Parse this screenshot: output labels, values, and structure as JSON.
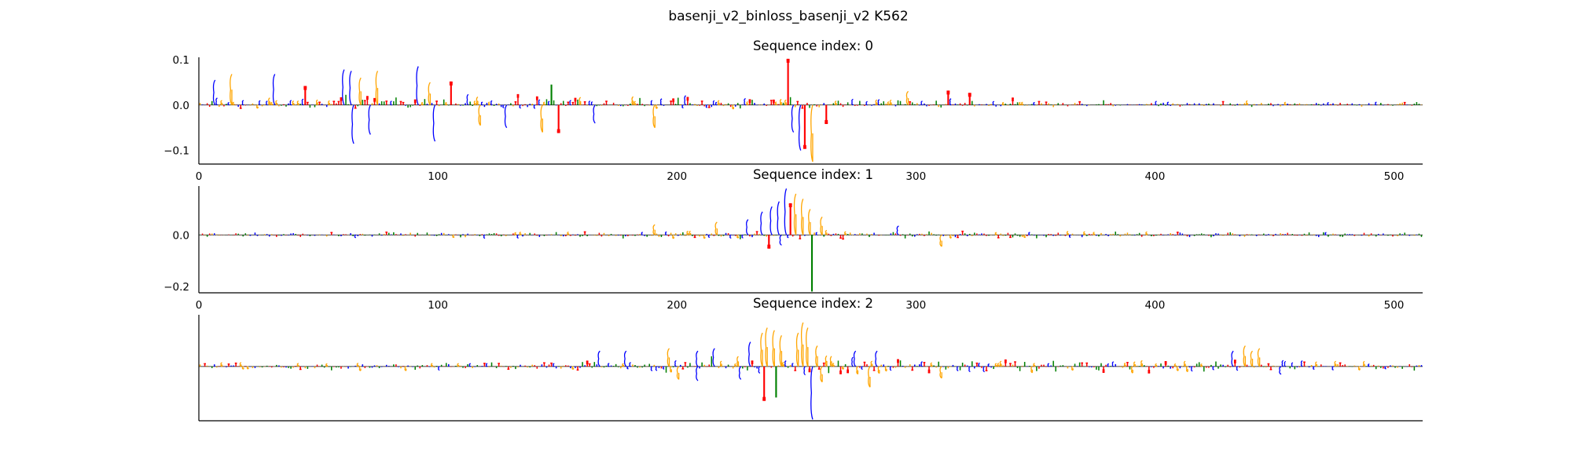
{
  "figure_title": "basenji_v2_binloss_basenji_v2 K562",
  "base_colors": {
    "A": "#008000",
    "C": "#0000ff",
    "G": "#ffa500",
    "T": "#ff0000"
  },
  "chart_data": [
    {
      "type": "sequence-logo",
      "title": "Sequence index: 0",
      "xlim": [
        0,
        512
      ],
      "ylim": [
        -0.13,
        0.105
      ],
      "xticks": [
        0,
        100,
        200,
        300,
        400,
        500
      ],
      "yticks": [
        -0.1,
        0.0,
        0.1
      ],
      "ytick_labels": [
        "−0.1",
        "0.0",
        "0.1"
      ],
      "baseline": 0.05,
      "noise_profile": [
        [
          0,
          0.01
        ],
        [
          140,
          0.013
        ],
        [
          200,
          0.012
        ],
        [
          300,
          0.009
        ],
        [
          380,
          0.006
        ],
        [
          512,
          0.004
        ]
      ],
      "peaks": [
        {
          "x": 6,
          "value": 0.055,
          "base": "C"
        },
        {
          "x": 13,
          "value": 0.068,
          "base": "G"
        },
        {
          "x": 31,
          "value": 0.068,
          "base": "C"
        },
        {
          "x": 44,
          "value": 0.04,
          "base": "T"
        },
        {
          "x": 60,
          "value": 0.078,
          "base": "C"
        },
        {
          "x": 63,
          "value": 0.075,
          "base": "C"
        },
        {
          "x": 67,
          "value": 0.06,
          "base": "G"
        },
        {
          "x": 74,
          "value": 0.075,
          "base": "G"
        },
        {
          "x": 91,
          "value": 0.085,
          "base": "C"
        },
        {
          "x": 96,
          "value": 0.05,
          "base": "G"
        },
        {
          "x": 105,
          "value": 0.05,
          "base": "T"
        },
        {
          "x": 147,
          "value": 0.045,
          "base": "A"
        },
        {
          "x": 246,
          "value": 0.1,
          "base": "T"
        },
        {
          "x": 296,
          "value": 0.03,
          "base": "G"
        },
        {
          "x": 313,
          "value": 0.03,
          "base": "T"
        },
        {
          "x": 322,
          "value": 0.025,
          "base": "T"
        },
        {
          "x": 64,
          "value": -0.085,
          "base": "C"
        },
        {
          "x": 71,
          "value": -0.065,
          "base": "C"
        },
        {
          "x": 98,
          "value": -0.08,
          "base": "C"
        },
        {
          "x": 117,
          "value": -0.045,
          "base": "G"
        },
        {
          "x": 128,
          "value": -0.05,
          "base": "C"
        },
        {
          "x": 143,
          "value": -0.06,
          "base": "G"
        },
        {
          "x": 150,
          "value": -0.06,
          "base": "T"
        },
        {
          "x": 165,
          "value": -0.04,
          "base": "C"
        },
        {
          "x": 190,
          "value": -0.05,
          "base": "G"
        },
        {
          "x": 248,
          "value": -0.06,
          "base": "C"
        },
        {
          "x": 251,
          "value": -0.1,
          "base": "C"
        },
        {
          "x": 253,
          "value": -0.095,
          "base": "T"
        },
        {
          "x": 256,
          "value": -0.125,
          "base": "G"
        },
        {
          "x": 262,
          "value": -0.04,
          "base": "T"
        }
      ]
    },
    {
      "type": "sequence-logo",
      "title": "Sequence index: 1",
      "xlim": [
        0,
        512
      ],
      "ylim": [
        -0.225,
        0.19
      ],
      "xticks": [
        0,
        100,
        200,
        300,
        400,
        500
      ],
      "yticks": [
        -0.2,
        0.0
      ],
      "ytick_labels": [
        "−0.2",
        "0.0"
      ],
      "baseline": 0.002,
      "noise_profile": [
        [
          0,
          0.007
        ],
        [
          180,
          0.01
        ],
        [
          230,
          0.016
        ],
        [
          300,
          0.012
        ],
        [
          512,
          0.007
        ]
      ],
      "peaks": [
        {
          "x": 229,
          "value": 0.06,
          "base": "C"
        },
        {
          "x": 235,
          "value": 0.09,
          "base": "C"
        },
        {
          "x": 239,
          "value": 0.11,
          "base": "C"
        },
        {
          "x": 242,
          "value": 0.13,
          "base": "C"
        },
        {
          "x": 245,
          "value": 0.18,
          "base": "C"
        },
        {
          "x": 247,
          "value": 0.12,
          "base": "T"
        },
        {
          "x": 249,
          "value": 0.16,
          "base": "G"
        },
        {
          "x": 252,
          "value": 0.14,
          "base": "G"
        },
        {
          "x": 255,
          "value": 0.1,
          "base": "G"
        },
        {
          "x": 260,
          "value": 0.07,
          "base": "G"
        },
        {
          "x": 216,
          "value": 0.05,
          "base": "G"
        },
        {
          "x": 190,
          "value": 0.04,
          "base": "G"
        },
        {
          "x": 238,
          "value": -0.05,
          "base": "T"
        },
        {
          "x": 256,
          "value": -0.22,
          "base": "A"
        },
        {
          "x": 243,
          "value": -0.04,
          "base": "C"
        },
        {
          "x": 292,
          "value": 0.035,
          "base": "C"
        },
        {
          "x": 310,
          "value": -0.045,
          "base": "G"
        }
      ]
    },
    {
      "type": "sequence-logo",
      "title": "Sequence index: 2",
      "xlim": [
        0,
        512
      ],
      "ylim": [
        -0.21,
        0.2
      ],
      "xticks": [],
      "yticks": [],
      "ytick_labels": [],
      "baseline": 0.003,
      "noise_profile": [
        [
          0,
          0.01
        ],
        [
          160,
          0.015
        ],
        [
          220,
          0.03
        ],
        [
          260,
          0.035
        ],
        [
          320,
          0.022
        ],
        [
          420,
          0.02
        ],
        [
          512,
          0.015
        ]
      ],
      "peaks": [
        {
          "x": 167,
          "value": 0.06,
          "base": "C"
        },
        {
          "x": 178,
          "value": 0.06,
          "base": "C"
        },
        {
          "x": 196,
          "value": 0.07,
          "base": "G"
        },
        {
          "x": 208,
          "value": 0.06,
          "base": "C"
        },
        {
          "x": 215,
          "value": 0.07,
          "base": "C"
        },
        {
          "x": 230,
          "value": 0.095,
          "base": "C"
        },
        {
          "x": 235,
          "value": 0.13,
          "base": "G"
        },
        {
          "x": 237,
          "value": 0.15,
          "base": "G"
        },
        {
          "x": 240,
          "value": 0.14,
          "base": "G"
        },
        {
          "x": 243,
          "value": 0.12,
          "base": "G"
        },
        {
          "x": 250,
          "value": 0.13,
          "base": "G"
        },
        {
          "x": 252,
          "value": 0.17,
          "base": "G"
        },
        {
          "x": 254,
          "value": 0.15,
          "base": "G"
        },
        {
          "x": 258,
          "value": 0.08,
          "base": "G"
        },
        {
          "x": 274,
          "value": 0.06,
          "base": "C"
        },
        {
          "x": 283,
          "value": 0.06,
          "base": "C"
        },
        {
          "x": 432,
          "value": 0.06,
          "base": "C"
        },
        {
          "x": 437,
          "value": 0.08,
          "base": "G"
        },
        {
          "x": 440,
          "value": 0.06,
          "base": "G"
        },
        {
          "x": 443,
          "value": 0.07,
          "base": "G"
        },
        {
          "x": 241,
          "value": -0.12,
          "base": "A"
        },
        {
          "x": 236,
          "value": -0.13,
          "base": "T"
        },
        {
          "x": 256,
          "value": -0.205,
          "base": "C"
        },
        {
          "x": 260,
          "value": -0.06,
          "base": "G"
        },
        {
          "x": 280,
          "value": -0.08,
          "base": "G"
        },
        {
          "x": 208,
          "value": -0.055,
          "base": "C"
        },
        {
          "x": 200,
          "value": -0.05,
          "base": "G"
        },
        {
          "x": 226,
          "value": -0.05,
          "base": "C"
        },
        {
          "x": 310,
          "value": -0.045,
          "base": "G"
        },
        {
          "x": 452,
          "value": -0.03,
          "base": "C"
        }
      ]
    }
  ]
}
